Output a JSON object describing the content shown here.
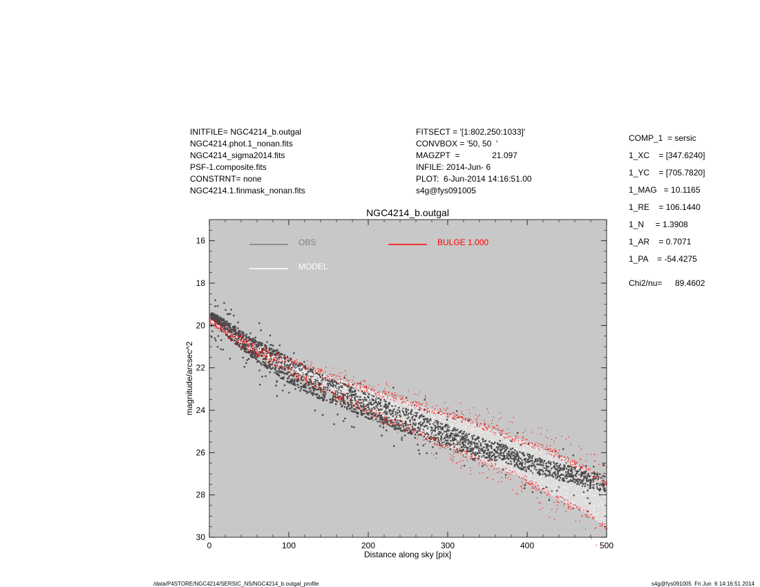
{
  "header_left": [
    "INITFILE= NGC4214_b.outgal",
    "NGC4214.phot.1_nonan.fits",
    "NGC4214_sigma2014.fits",
    "PSF-1.composite.fits",
    "CONSTRNT= none",
    "NGC4214.1.finmask_nonan.fits"
  ],
  "header_mid": [
    "FITSECT = '[1:802,250:1033]'",
    "CONVBOX = '50, 50  '",
    "MAGZPT  =              21.097",
    "INFILE: 2014-Jun- 6",
    "PLOT:  6-Jun-2014 14:16:51.00",
    "s4g@fys091005"
  ],
  "params": [
    "COMP_1  = sersic",
    "1_XC    = [347.6240]",
    "1_YC    = [705.7820]",
    "1_MAG   = 10.1165",
    "1_RE    = 106.1440",
    "1_N     = 1.3908",
    "1_AR    = 0.7071",
    "1_PA    = -54.4275"
  ],
  "chi2_label": "Chi2/nu=",
  "chi2_value": "89.4602",
  "footer_left": "/data/P4STORE/NGC4214/SERSIC_NS/NGC4214_b.outgal_profile",
  "footer_right": "s4g@fys091005  Fri Jun  6 14:16:51 2014",
  "chart_data": {
    "type": "scatter",
    "title": "NGC4214_b.outgal",
    "xlabel": "Distance along sky [pix]",
    "ylabel": "magnitude/arcsec^2",
    "xlim": [
      0,
      500
    ],
    "ylim": [
      30,
      15
    ],
    "xticks": [
      0,
      100,
      200,
      300,
      400,
      500
    ],
    "yticks": [
      16,
      18,
      20,
      22,
      24,
      26,
      28,
      30
    ],
    "grid": false,
    "legend_position": "top-left",
    "colors": {
      "plot_bg": "#c8c8c8",
      "obs": "#4a4a4a",
      "model": "#ffffff",
      "bulge": "#ff0000",
      "obs_legend": "#808080"
    },
    "legend": [
      {
        "label": "OBS",
        "color": "#808080"
      },
      {
        "label": "MODEL",
        "color": "#ffffff"
      },
      {
        "label": "BULGE  1.000",
        "color": "#ff0000"
      }
    ],
    "series": [
      {
        "name": "OBS",
        "kind": "points",
        "x": [
          3,
          8,
          15,
          22,
          30,
          40,
          50,
          60,
          75,
          90,
          105,
          120,
          140,
          160,
          180,
          200,
          220,
          240,
          260,
          280,
          300,
          320,
          340,
          360,
          380,
          400,
          420,
          440,
          460,
          480,
          500
        ],
        "y_lower": [
          19.7,
          19.9,
          20.2,
          20.5,
          20.8,
          21.1,
          21.4,
          21.7,
          22.1,
          22.5,
          22.8,
          23.1,
          23.5,
          23.8,
          24.1,
          24.4,
          24.7,
          25.0,
          25.2,
          25.5,
          25.7,
          26.0,
          26.2,
          26.4,
          26.6,
          26.9,
          27.1,
          27.3,
          27.5,
          27.7,
          27.9
        ],
        "y_upper": [
          19.4,
          19.5,
          19.6,
          19.8,
          20.0,
          20.2,
          20.5,
          20.7,
          21.0,
          21.3,
          21.6,
          21.9,
          22.3,
          22.6,
          22.9,
          23.2,
          23.5,
          23.8,
          24.1,
          24.4,
          24.7,
          25.0,
          25.3,
          25.5,
          25.8,
          26.0,
          26.3,
          26.5,
          26.7,
          26.9,
          27.1
        ]
      },
      {
        "name": "BULGE  1.000",
        "kind": "band",
        "x": [
          0,
          25,
          50,
          75,
          100,
          125,
          150,
          175,
          200,
          225,
          250,
          275,
          300,
          325,
          350,
          375,
          400,
          425,
          450,
          475,
          500
        ],
        "y_lower": [
          19.7,
          20.5,
          21.1,
          21.6,
          22.1,
          22.6,
          23.1,
          23.5,
          24.0,
          24.4,
          24.8,
          25.3,
          25.7,
          26.1,
          26.5,
          26.9,
          27.3,
          27.9,
          28.4,
          28.9,
          29.5
        ],
        "y_upper": [
          19.7,
          20.3,
          20.8,
          21.3,
          21.7,
          22.0,
          22.4,
          22.7,
          23.0,
          23.3,
          23.6,
          23.9,
          24.2,
          24.5,
          24.8,
          25.2,
          25.5,
          25.9,
          26.3,
          26.8,
          27.5
        ]
      }
    ]
  }
}
